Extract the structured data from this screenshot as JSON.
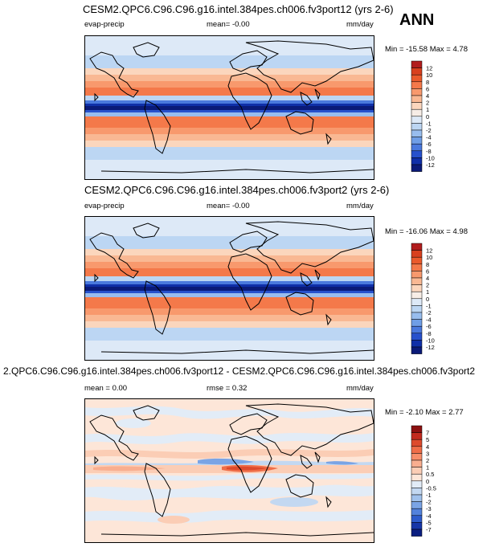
{
  "season": "ANN",
  "panels": [
    {
      "title": "CESM2.QPC6.C96.C96.g16.intel.384pes.ch006.fv3port12 (yrs 2-6)",
      "left_label": "evap-precip",
      "stat_label": "mean=  -0.00",
      "units": "mm/day",
      "minmax": "Min = -15.58 Max =   4.78",
      "colorbar_levels": [
        "12",
        "10",
        "8",
        "6",
        "4",
        "2",
        "1",
        "0",
        "-1",
        "-2",
        "-4",
        "-6",
        "-8",
        "-10",
        "-12"
      ],
      "colors": [
        "#b11d1d",
        "#d8401e",
        "#ea5a2c",
        "#f4794a",
        "#f8996d",
        "#f9b893",
        "#fbd6bd",
        "#f7ede6",
        "#dde9f7",
        "#bcd6f3",
        "#98bdee",
        "#6f9ee6",
        "#4a79dd",
        "#2751cc",
        "#0f2fa8",
        "#0a1a78"
      ]
    },
    {
      "title": "CESM2.QPC6.C96.C96.g16.intel.384pes.ch006.fv3port2 (yrs 2-6)",
      "left_label": "evap-precip",
      "stat_label": "mean=  -0.00",
      "units": "mm/day",
      "minmax": "Min = -16.06 Max =   4.98",
      "colorbar_levels": [
        "12",
        "10",
        "8",
        "6",
        "4",
        "2",
        "1",
        "0",
        "-1",
        "-2",
        "-4",
        "-6",
        "-8",
        "-10",
        "-12"
      ],
      "colors": [
        "#b11d1d",
        "#d8401e",
        "#ea5a2c",
        "#f4794a",
        "#f8996d",
        "#f9b893",
        "#fbd6bd",
        "#f7ede6",
        "#dde9f7",
        "#bcd6f3",
        "#98bdee",
        "#6f9ee6",
        "#4a79dd",
        "#2751cc",
        "#0f2fa8",
        "#0a1a78"
      ]
    },
    {
      "title": "2.QPC6.C96.C96.g16.intel.384pes.ch006.fv3port12 - CESM2.QPC6.C96.C96.g16.intel.384pes.ch006.fv3port2",
      "left_label": "mean =  0.00",
      "stat_label": "rmse =  0.32",
      "units": "mm/day",
      "minmax": "Min =  -2.10 Max =   2.77",
      "colorbar_levels": [
        "7",
        "5",
        "4",
        "3",
        "2",
        "1",
        "0.5",
        "0",
        "-0.5",
        "-1",
        "-2",
        "-3",
        "-4",
        "-5",
        "-7"
      ],
      "colors": [
        "#8c1010",
        "#c22a1e",
        "#dd4a2c",
        "#ef6d48",
        "#f78e6a",
        "#f9ae8f",
        "#fbcdb5",
        "#fde6d8",
        "#e2ecf7",
        "#c3d8f1",
        "#a0c1ec",
        "#7aa4e5",
        "#5382dc",
        "#2e5ccc",
        "#1636a8",
        "#0a1e80"
      ]
    }
  ]
}
